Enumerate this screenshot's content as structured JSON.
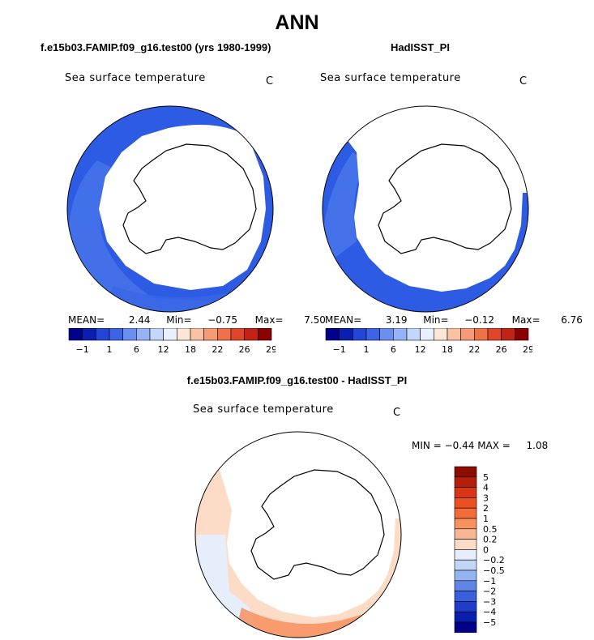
{
  "figure": {
    "title": "ANN",
    "diff_title": "f.e15b03.FAMIP.f09_g16.test00 - HadISST_PI"
  },
  "chart_data": [
    {
      "type": "heatmap",
      "projection": "south-polar-stereographic",
      "panel_title": "f.e15b03.FAMIP.f09_g16.test00 (yrs 1980-1999)",
      "variable": "Sea surface temperature",
      "units": "C",
      "stats": {
        "mean_label": "MEAN=",
        "mean": "2.44",
        "min_label": "Min=",
        "min": "−0.75",
        "max_label": "Max=",
        "max": "7.50"
      },
      "colorbar_ticks": [
        "−1",
        "1",
        "6",
        "12",
        "18",
        "22",
        "26",
        "29"
      ],
      "colorbar_colors": [
        "#00008b",
        "#0a1fb0",
        "#2346d9",
        "#3d63e6",
        "#6b8ff0",
        "#96b3f7",
        "#c3d6fb",
        "#e8f0fd",
        "#fde6d6",
        "#f9c2a3",
        "#f69b76",
        "#f07148",
        "#e0462a",
        "#c32315",
        "#8b0000"
      ],
      "data_color": "#2e5be3",
      "grid": false,
      "legend_placement": "bottom"
    },
    {
      "type": "heatmap",
      "projection": "south-polar-stereographic",
      "panel_title": "HadISST_PI",
      "variable": "Sea surface temperature",
      "units": "C",
      "stats": {
        "mean_label": "MEAN=",
        "mean": "3.19",
        "min_label": "Min=",
        "min": "−0.12",
        "max_label": "Max=",
        "max": "6.76"
      },
      "colorbar_ticks": [
        "−1",
        "1",
        "6",
        "12",
        "18",
        "22",
        "26",
        "29"
      ],
      "colorbar_colors": [
        "#00008b",
        "#0a1fb0",
        "#2346d9",
        "#3d63e6",
        "#6b8ff0",
        "#96b3f7",
        "#c3d6fb",
        "#e8f0fd",
        "#fde6d6",
        "#f9c2a3",
        "#f69b76",
        "#f07148",
        "#e0462a",
        "#c32315",
        "#8b0000"
      ],
      "data_color": "#2e5be3",
      "grid": false,
      "legend_placement": "bottom"
    },
    {
      "type": "heatmap",
      "projection": "south-polar-stereographic",
      "panel_title": "f.e15b03.FAMIP.f09_g16.test00 - HadISST_PI",
      "variable": "Sea surface temperature",
      "units": "C",
      "stats": {
        "min_label": "MIN =",
        "min": "−0.44",
        "max_label": "MAX =",
        "max": "1.08"
      },
      "colorbar_ticks": [
        "5",
        "4",
        "3",
        "2",
        "1",
        "0.5",
        "0.2",
        "0",
        "−0.2",
        "−0.5",
        "−1",
        "−2",
        "−3",
        "−4",
        "−5"
      ],
      "colorbar_colors": [
        "#8b0c00",
        "#b41f0a",
        "#d83514",
        "#ea5020",
        "#f36d3a",
        "#f7915f",
        "#f8b794",
        "#fcdcc7",
        "#e5eefa",
        "#c2d6f6",
        "#93b4ef",
        "#5f85e6",
        "#3a5fdb",
        "#1e3ec9",
        "#0a1fb0",
        "#00008b"
      ],
      "data_color": "#f5a582",
      "grid": false,
      "legend_placement": "right"
    }
  ]
}
